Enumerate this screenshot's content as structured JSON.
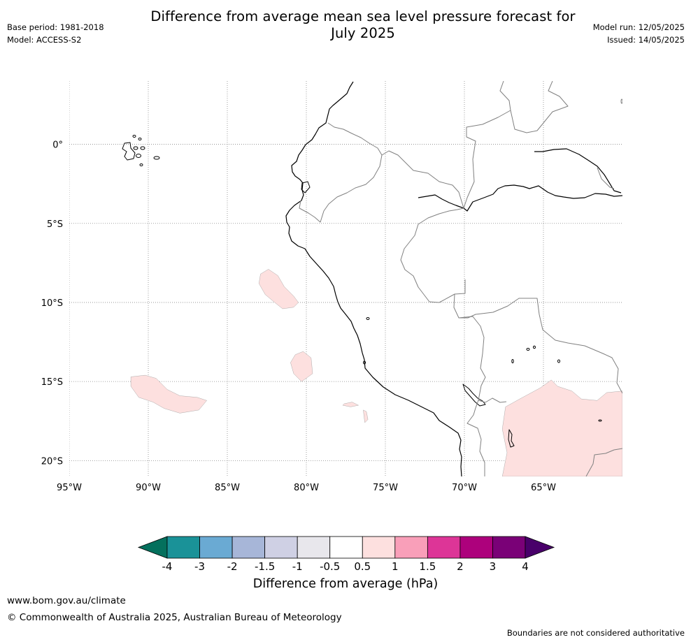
{
  "title": {
    "line1": "Difference from average mean sea level pressure forecast for",
    "line2": "July 2025"
  },
  "meta_left": {
    "base_period": "Base period: 1981-2018",
    "model": "Model: ACCESS-S2"
  },
  "meta_right": {
    "model_run": "Model run: 12/05/2025",
    "issued": "Issued: 14/05/2025"
  },
  "map": {
    "lon_range": [
      -95,
      -60
    ],
    "lat_range": [
      -21,
      4
    ],
    "lon_ticks": [
      {
        "value": -95,
        "label": "95°W"
      },
      {
        "value": -90,
        "label": "90°W"
      },
      {
        "value": -85,
        "label": "85°W"
      },
      {
        "value": -80,
        "label": "80°W"
      },
      {
        "value": -75,
        "label": "75°W"
      },
      {
        "value": -70,
        "label": "70°W"
      },
      {
        "value": -65,
        "label": "65°W"
      }
    ],
    "lat_ticks": [
      {
        "value": 0,
        "label": "0°"
      },
      {
        "value": -5,
        "label": "5°S"
      },
      {
        "value": -10,
        "label": "10°S"
      },
      {
        "value": -15,
        "label": "15°S"
      },
      {
        "value": -20,
        "label": "20°S"
      }
    ],
    "grid": "dotted",
    "anomaly_regions_category": "0.5 to 1 hPa",
    "anomaly_regions": [
      {
        "name": "region-near-10S-82W",
        "lonlat": [
          [
            -82.9,
            -8.2
          ],
          [
            -82.4,
            -7.9
          ],
          [
            -81.8,
            -8.3
          ],
          [
            -81.4,
            -9.0
          ],
          [
            -80.8,
            -9.6
          ],
          [
            -80.5,
            -10.0
          ],
          [
            -80.8,
            -10.3
          ],
          [
            -81.5,
            -10.4
          ],
          [
            -82.0,
            -10.0
          ],
          [
            -82.6,
            -9.5
          ],
          [
            -83.0,
            -8.8
          ]
        ]
      },
      {
        "name": "region-near-15S-89W",
        "lonlat": [
          [
            -91.1,
            -14.7
          ],
          [
            -90.2,
            -14.6
          ],
          [
            -89.5,
            -14.8
          ],
          [
            -88.8,
            -15.5
          ],
          [
            -88.0,
            -15.9
          ],
          [
            -86.9,
            -16.0
          ],
          [
            -86.3,
            -16.2
          ],
          [
            -86.8,
            -16.8
          ],
          [
            -88.0,
            -17.0
          ],
          [
            -89.0,
            -16.7
          ],
          [
            -89.7,
            -16.3
          ],
          [
            -90.6,
            -16.0
          ],
          [
            -91.1,
            -15.3
          ]
        ]
      },
      {
        "name": "region-near-15S-80W",
        "lonlat": [
          [
            -80.7,
            -13.3
          ],
          [
            -80.2,
            -13.1
          ],
          [
            -79.7,
            -13.5
          ],
          [
            -79.6,
            -14.5
          ],
          [
            -80.3,
            -15.0
          ],
          [
            -80.8,
            -14.5
          ],
          [
            -81.0,
            -13.8
          ]
        ]
      },
      {
        "name": "region-near-17S-77W",
        "lonlat": [
          [
            -77.6,
            -16.4
          ],
          [
            -77.1,
            -16.3
          ],
          [
            -76.7,
            -16.5
          ],
          [
            -77.2,
            -16.6
          ],
          [
            -77.7,
            -16.5
          ]
        ]
      },
      {
        "name": "region-near-18S-76W",
        "lonlat": [
          [
            -76.4,
            -16.8
          ],
          [
            -76.3,
            -17.6
          ],
          [
            -76.1,
            -17.4
          ],
          [
            -76.2,
            -16.9
          ]
        ]
      },
      {
        "name": "region-southeast",
        "lonlat": [
          [
            -67.6,
            -21.0
          ],
          [
            -67.3,
            -19.5
          ],
          [
            -67.6,
            -18.0
          ],
          [
            -67.4,
            -16.6
          ],
          [
            -66.5,
            -16.1
          ],
          [
            -65.2,
            -15.4
          ],
          [
            -64.5,
            -14.9
          ],
          [
            -64.1,
            -15.3
          ],
          [
            -63.2,
            -15.6
          ],
          [
            -62.6,
            -16.1
          ],
          [
            -61.6,
            -16.2
          ],
          [
            -61.0,
            -15.7
          ],
          [
            -60.0,
            -15.6
          ],
          [
            -60.0,
            -21.0
          ]
        ]
      }
    ]
  },
  "colorbar": {
    "label": "Difference from average (hPa)",
    "tick_labels": [
      "-4",
      "-3",
      "-2",
      "-1.5",
      "-1",
      "-0.5",
      "0.5",
      "1",
      "1.5",
      "2",
      "3",
      "4"
    ],
    "colors": [
      "#1a9298",
      "#6aaad3",
      "#a7b6d8",
      "#cfd0e4",
      "#e8e7ec",
      "#ffffff",
      "#fde0df",
      "#f99fb9",
      "#dd3597",
      "#ad017c",
      "#7a0177"
    ],
    "under_color": "#04705d",
    "over_color": "#49006a",
    "anomaly_fill": "#fde0df"
  },
  "footer": {
    "website": "www.bom.gov.au/climate",
    "copyright": "© Commonwealth of Australia 2025, Australian Bureau of Meteorology",
    "disclaimer": "Boundaries are not considered authoritative"
  }
}
